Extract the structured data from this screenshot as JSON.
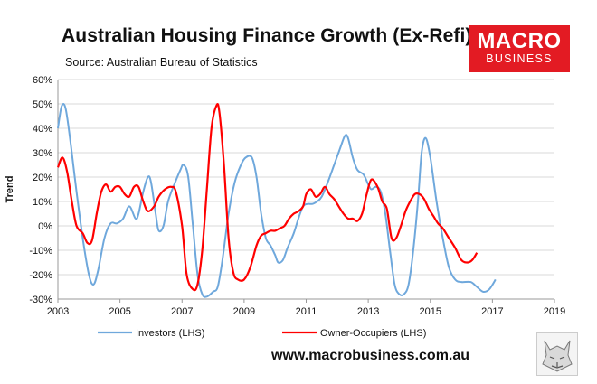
{
  "title": "Australian Housing Finance Growth (Ex-Refi)",
  "subtitle": "Source: Australian Bureau of Statistics",
  "logo": {
    "line1": "MACRO",
    "line2": "BUSINESS",
    "color": "#e31b23"
  },
  "website": "www.macrobusiness.com.au",
  "wolf_icon": "wolf-head-icon",
  "chart_data": {
    "type": "line",
    "title": "Australian Housing Finance Growth (Ex-Refi)",
    "xlabel": "",
    "ylabel": "Trend",
    "xlim": [
      2003,
      2019
    ],
    "ylim": [
      -30,
      60
    ],
    "x_ticks": [
      "2003",
      "2005",
      "2007",
      "2009",
      "2011",
      "2013",
      "2015",
      "2017",
      "2019"
    ],
    "y_ticks": [
      "60%",
      "50%",
      "40%",
      "30%",
      "20%",
      "10%",
      "0%",
      "-10%",
      "-20%",
      "-30%"
    ],
    "y_tick_values": [
      60,
      50,
      40,
      30,
      20,
      10,
      0,
      -10,
      -20,
      -30
    ],
    "grid": true,
    "legend": "bottom",
    "series": [
      {
        "name": "Investors (LHS)",
        "color": "#6fa8dc",
        "points": [
          [
            2003.0,
            40
          ],
          [
            2003.12,
            49
          ],
          [
            2003.25,
            48
          ],
          [
            2003.42,
            33
          ],
          [
            2003.6,
            14
          ],
          [
            2003.8,
            -5
          ],
          [
            2004.0,
            -20
          ],
          [
            2004.15,
            -24
          ],
          [
            2004.3,
            -18
          ],
          [
            2004.5,
            -5
          ],
          [
            2004.7,
            1
          ],
          [
            2004.9,
            1
          ],
          [
            2005.1,
            3
          ],
          [
            2005.3,
            8
          ],
          [
            2005.5,
            3
          ],
          [
            2005.6,
            5
          ],
          [
            2005.75,
            14
          ],
          [
            2005.9,
            20
          ],
          [
            2006.0,
            18
          ],
          [
            2006.15,
            5
          ],
          [
            2006.25,
            -2
          ],
          [
            2006.4,
            0
          ],
          [
            2006.55,
            10
          ],
          [
            2006.75,
            17
          ],
          [
            2006.95,
            23
          ],
          [
            2007.05,
            25
          ],
          [
            2007.2,
            20
          ],
          [
            2007.35,
            0
          ],
          [
            2007.5,
            -20
          ],
          [
            2007.65,
            -28
          ],
          [
            2007.8,
            -29
          ],
          [
            2008.0,
            -27
          ],
          [
            2008.15,
            -25
          ],
          [
            2008.3,
            -14
          ],
          [
            2008.5,
            5
          ],
          [
            2008.7,
            18
          ],
          [
            2008.9,
            25
          ],
          [
            2009.05,
            28
          ],
          [
            2009.25,
            28
          ],
          [
            2009.4,
            20
          ],
          [
            2009.55,
            5
          ],
          [
            2009.7,
            -5
          ],
          [
            2009.85,
            -8
          ],
          [
            2010.0,
            -12
          ],
          [
            2010.1,
            -15
          ],
          [
            2010.25,
            -14
          ],
          [
            2010.4,
            -9
          ],
          [
            2010.6,
            -3
          ],
          [
            2010.75,
            3
          ],
          [
            2010.9,
            8
          ],
          [
            2011.05,
            9
          ],
          [
            2011.2,
            9
          ],
          [
            2011.35,
            10
          ],
          [
            2011.5,
            12
          ],
          [
            2011.7,
            18
          ],
          [
            2011.9,
            25
          ],
          [
            2012.1,
            32
          ],
          [
            2012.25,
            37
          ],
          [
            2012.35,
            36
          ],
          [
            2012.5,
            28
          ],
          [
            2012.65,
            23
          ],
          [
            2012.85,
            21
          ],
          [
            2013.0,
            17
          ],
          [
            2013.1,
            15
          ],
          [
            2013.25,
            16
          ],
          [
            2013.4,
            14
          ],
          [
            2013.55,
            5
          ],
          [
            2013.7,
            -10
          ],
          [
            2013.85,
            -24
          ],
          [
            2014.0,
            -28
          ],
          [
            2014.15,
            -28
          ],
          [
            2014.3,
            -24
          ],
          [
            2014.45,
            -10
          ],
          [
            2014.6,
            10
          ],
          [
            2014.72,
            30
          ],
          [
            2014.85,
            36
          ],
          [
            2015.0,
            28
          ],
          [
            2015.2,
            10
          ],
          [
            2015.4,
            -5
          ],
          [
            2015.6,
            -17
          ],
          [
            2015.8,
            -22
          ],
          [
            2016.0,
            -23
          ],
          [
            2016.3,
            -23
          ],
          [
            2016.5,
            -25
          ],
          [
            2016.7,
            -27
          ],
          [
            2016.9,
            -26
          ],
          [
            2017.1,
            -22
          ]
        ]
      },
      {
        "name": "Owner-Occupiers (LHS)",
        "color": "#ff0000",
        "points": [
          [
            2003.0,
            24
          ],
          [
            2003.15,
            28
          ],
          [
            2003.3,
            22
          ],
          [
            2003.45,
            10
          ],
          [
            2003.6,
            0
          ],
          [
            2003.8,
            -3
          ],
          [
            2003.95,
            -7
          ],
          [
            2004.1,
            -6
          ],
          [
            2004.25,
            5
          ],
          [
            2004.4,
            14
          ],
          [
            2004.55,
            17
          ],
          [
            2004.7,
            14
          ],
          [
            2004.85,
            16
          ],
          [
            2005.0,
            16
          ],
          [
            2005.15,
            13
          ],
          [
            2005.3,
            12
          ],
          [
            2005.45,
            16
          ],
          [
            2005.6,
            16
          ],
          [
            2005.75,
            10
          ],
          [
            2005.9,
            6
          ],
          [
            2006.1,
            8
          ],
          [
            2006.25,
            12
          ],
          [
            2006.45,
            15
          ],
          [
            2006.65,
            16
          ],
          [
            2006.8,
            14
          ],
          [
            2007.0,
            0
          ],
          [
            2007.15,
            -20
          ],
          [
            2007.35,
            -26
          ],
          [
            2007.5,
            -24
          ],
          [
            2007.65,
            -10
          ],
          [
            2007.8,
            15
          ],
          [
            2007.95,
            40
          ],
          [
            2008.1,
            49
          ],
          [
            2008.2,
            47
          ],
          [
            2008.35,
            25
          ],
          [
            2008.5,
            -5
          ],
          [
            2008.65,
            -19
          ],
          [
            2008.8,
            -22
          ],
          [
            2009.0,
            -22
          ],
          [
            2009.2,
            -17
          ],
          [
            2009.4,
            -8
          ],
          [
            2009.55,
            -4
          ],
          [
            2009.7,
            -3
          ],
          [
            2009.85,
            -2
          ],
          [
            2010.0,
            -2
          ],
          [
            2010.15,
            -1
          ],
          [
            2010.3,
            0
          ],
          [
            2010.45,
            3
          ],
          [
            2010.6,
            5
          ],
          [
            2010.75,
            6
          ],
          [
            2010.9,
            8
          ],
          [
            2011.0,
            13
          ],
          [
            2011.15,
            15
          ],
          [
            2011.3,
            12
          ],
          [
            2011.45,
            13
          ],
          [
            2011.6,
            16
          ],
          [
            2011.75,
            13
          ],
          [
            2011.9,
            11
          ],
          [
            2012.05,
            8
          ],
          [
            2012.2,
            5
          ],
          [
            2012.35,
            3
          ],
          [
            2012.5,
            3
          ],
          [
            2012.65,
            2
          ],
          [
            2012.8,
            5
          ],
          [
            2012.95,
            13
          ],
          [
            2013.1,
            19
          ],
          [
            2013.3,
            16
          ],
          [
            2013.45,
            10
          ],
          [
            2013.6,
            7
          ],
          [
            2013.75,
            -5
          ],
          [
            2013.9,
            -5
          ],
          [
            2014.05,
            0
          ],
          [
            2014.2,
            6
          ],
          [
            2014.35,
            10
          ],
          [
            2014.5,
            13
          ],
          [
            2014.65,
            13
          ],
          [
            2014.8,
            11
          ],
          [
            2014.95,
            7
          ],
          [
            2015.1,
            4
          ],
          [
            2015.25,
            1
          ],
          [
            2015.4,
            -1
          ],
          [
            2015.6,
            -5
          ],
          [
            2015.8,
            -9
          ],
          [
            2016.0,
            -14
          ],
          [
            2016.2,
            -15
          ],
          [
            2016.35,
            -14
          ],
          [
            2016.5,
            -11
          ]
        ]
      }
    ]
  }
}
